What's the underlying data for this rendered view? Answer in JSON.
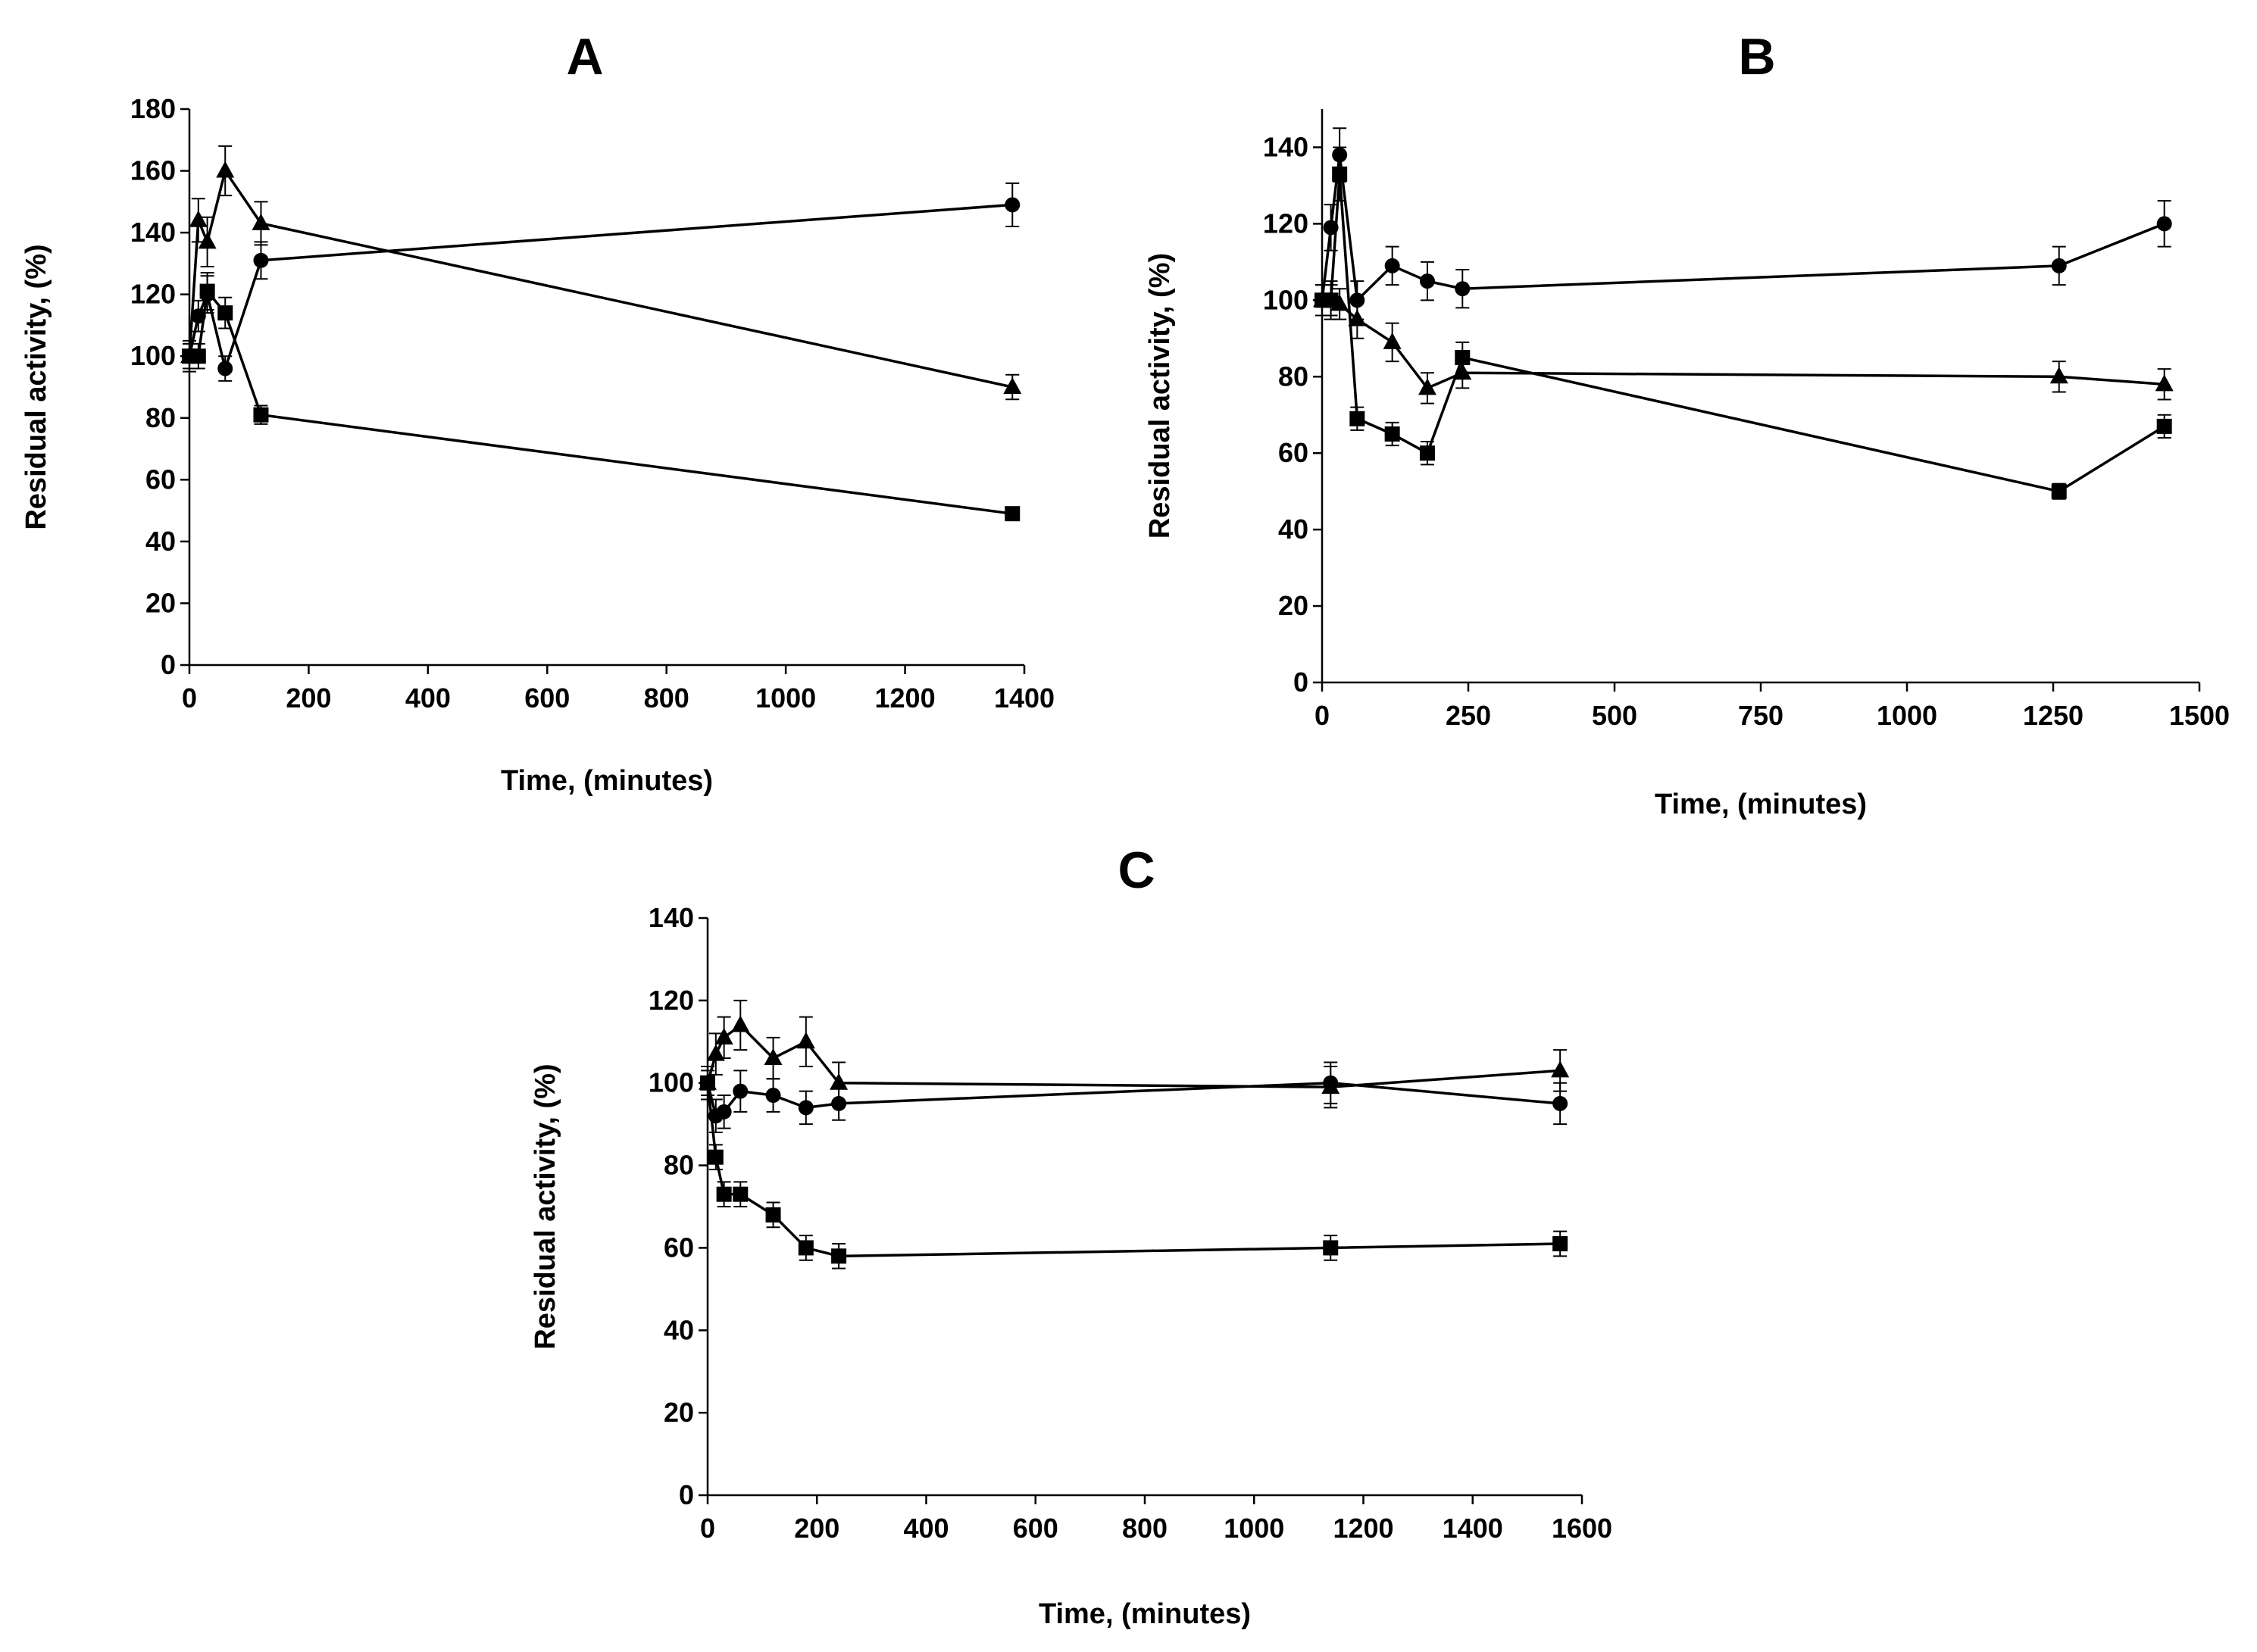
{
  "chart_data": [
    {
      "type": "line",
      "title": "A",
      "xlabel": "Time, (minutes)",
      "ylabel": "Residual  activity, (%)",
      "xlim": [
        0,
        1400
      ],
      "ylim": [
        0,
        180
      ],
      "xticks": [
        0,
        200,
        400,
        600,
        800,
        1000,
        1200,
        1400
      ],
      "yticks": [
        0,
        20,
        40,
        60,
        80,
        100,
        120,
        140,
        160,
        180
      ],
      "xtick_labels": [
        "0",
        "200",
        "400",
        "600",
        "800",
        "1000",
        "1200",
        "1400"
      ],
      "ytick_labels": [
        "0",
        "20",
        "40",
        "60",
        "80",
        "100",
        "120",
        "140",
        "160",
        "180"
      ],
      "grid": false,
      "legend": "none",
      "series": [
        {
          "name": "circle",
          "marker": "circle",
          "x": [
            0,
            15,
            30,
            60,
            120,
            1380
          ],
          "values": [
            100,
            113,
            120,
            96,
            131,
            149
          ],
          "errors": [
            4,
            5,
            6,
            4,
            6,
            7
          ]
        },
        {
          "name": "triangle",
          "marker": "triangle",
          "x": [
            0,
            15,
            30,
            60,
            120,
            1380
          ],
          "values": [
            100,
            144,
            137,
            160,
            143,
            90
          ],
          "errors": [
            5,
            7,
            8,
            8,
            7,
            4
          ]
        },
        {
          "name": "square",
          "marker": "square",
          "x": [
            0,
            15,
            30,
            60,
            120,
            1380
          ],
          "values": [
            100,
            100,
            121,
            114,
            81,
            49
          ],
          "errors": [
            4,
            4,
            6,
            5,
            3,
            2
          ]
        }
      ]
    },
    {
      "type": "line",
      "title": "B",
      "xlabel": "Time, (minutes)",
      "ylabel": "Residual activity, (%)",
      "xlim": [
        0,
        1500
      ],
      "ylim": [
        0,
        150
      ],
      "xticks": [
        0,
        250,
        500,
        750,
        1000,
        1250,
        1500
      ],
      "yticks": [
        0,
        20,
        40,
        60,
        80,
        100,
        120,
        140
      ],
      "xtick_labels": [
        "0",
        "250",
        "500",
        "750",
        "1000",
        "1250",
        "1500"
      ],
      "ytick_labels": [
        "0",
        "20",
        "40",
        "60",
        "80",
        "100",
        "120",
        "140"
      ],
      "grid": false,
      "legend": "none",
      "series": [
        {
          "name": "circle",
          "marker": "circle",
          "x": [
            0,
            15,
            30,
            60,
            120,
            180,
            240,
            1260,
            1440
          ],
          "values": [
            100,
            119,
            138,
            100,
            109,
            105,
            103,
            109,
            120
          ],
          "errors": [
            4,
            6,
            7,
            5,
            5,
            5,
            5,
            5,
            6
          ]
        },
        {
          "name": "triangle",
          "marker": "triangle",
          "x": [
            0,
            15,
            30,
            60,
            120,
            180,
            240,
            1260,
            1440
          ],
          "values": [
            100,
            100,
            99,
            95,
            89,
            77,
            81,
            80,
            78
          ],
          "errors": [
            4,
            4,
            4,
            5,
            5,
            4,
            4,
            4,
            4
          ]
        },
        {
          "name": "square",
          "marker": "square",
          "x": [
            0,
            15,
            30,
            60,
            120,
            180,
            240,
            1260,
            1440
          ],
          "values": [
            100,
            100,
            133,
            69,
            65,
            60,
            85,
            50,
            67
          ],
          "errors": [
            4,
            5,
            7,
            3,
            3,
            3,
            4,
            2,
            3
          ]
        }
      ]
    },
    {
      "type": "line",
      "title": "C",
      "xlabel": "Time, (minutes)",
      "ylabel": "Residual activity, (%)",
      "xlim": [
        0,
        1600
      ],
      "ylim": [
        0,
        140
      ],
      "xticks": [
        0,
        200,
        400,
        600,
        800,
        1000,
        1200,
        1400,
        1600
      ],
      "yticks": [
        0,
        20,
        40,
        60,
        80,
        100,
        120,
        140
      ],
      "xtick_labels": [
        "0",
        "200",
        "400",
        "600",
        "800",
        "1000",
        "1200",
        "1400",
        "1600"
      ],
      "ytick_labels": [
        "0",
        "20",
        "40",
        "60",
        "80",
        "100",
        "120",
        "140"
      ],
      "grid": false,
      "legend": "none",
      "series": [
        {
          "name": "circle",
          "marker": "circle",
          "x": [
            0,
            15,
            30,
            60,
            120,
            180,
            240,
            1140,
            1560
          ],
          "values": [
            100,
            92,
            93,
            98,
            97,
            94,
            95,
            100,
            95
          ],
          "errors": [
            4,
            4,
            4,
            5,
            4,
            4,
            4,
            5,
            5
          ]
        },
        {
          "name": "triangle",
          "marker": "triangle",
          "x": [
            0,
            15,
            30,
            60,
            120,
            180,
            240,
            1140,
            1560
          ],
          "values": [
            100,
            107,
            111,
            114,
            106,
            110,
            100,
            99,
            103
          ],
          "errors": [
            4,
            5,
            5,
            6,
            5,
            6,
            5,
            5,
            5
          ]
        },
        {
          "name": "square",
          "marker": "square",
          "x": [
            0,
            15,
            30,
            60,
            120,
            180,
            240,
            1140,
            1560
          ],
          "values": [
            100,
            82,
            73,
            73,
            68,
            60,
            58,
            60,
            61
          ],
          "errors": [
            3,
            3,
            3,
            3,
            3,
            3,
            3,
            3,
            3
          ]
        }
      ]
    }
  ]
}
